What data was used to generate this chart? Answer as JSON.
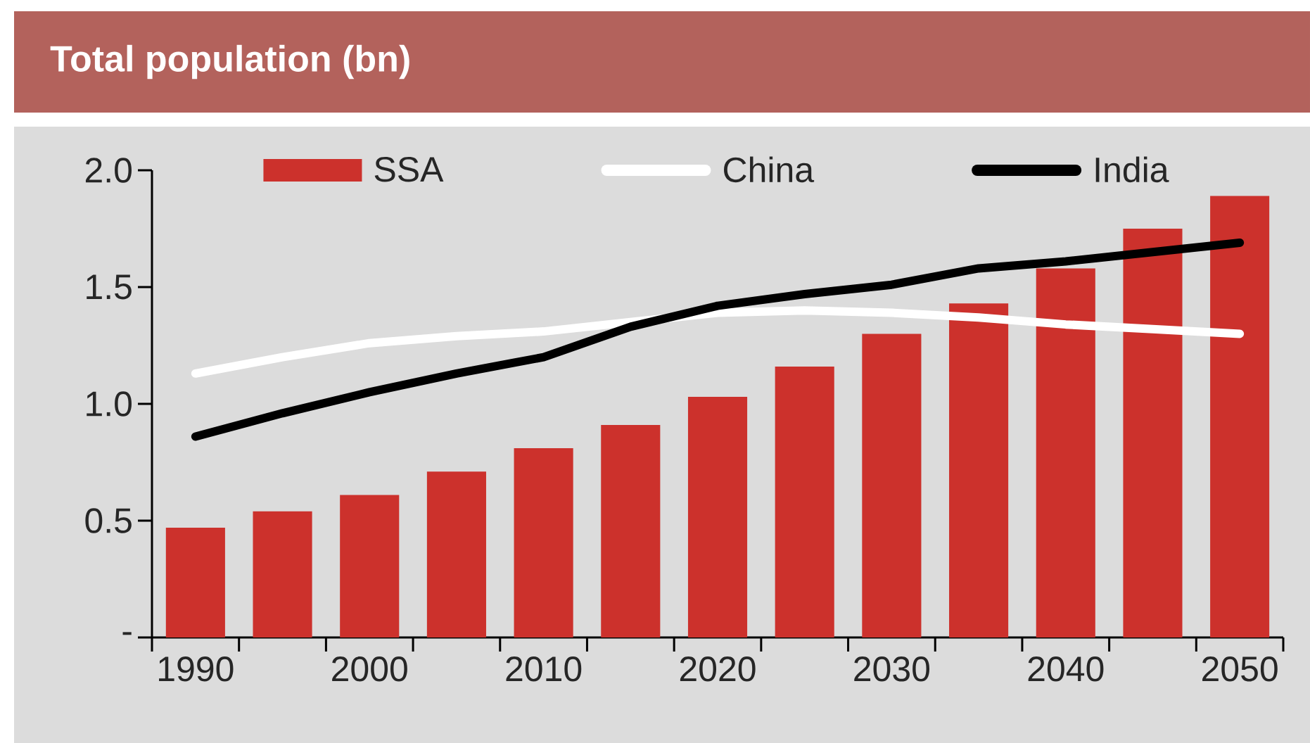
{
  "chart_data": {
    "type": "bar",
    "title": "Total population (bn)",
    "x": [
      1990,
      1995,
      2000,
      2005,
      2010,
      2015,
      2020,
      2025,
      2030,
      2035,
      2040,
      2045,
      2050
    ],
    "series": [
      {
        "name": "SSA",
        "color": "#cc312c",
        "values": [
          0.47,
          0.54,
          0.61,
          0.71,
          0.81,
          0.91,
          1.03,
          1.16,
          1.3,
          1.43,
          1.58,
          1.75,
          1.89
        ]
      },
      {
        "name": "China",
        "type": "line",
        "color": "#ffffff",
        "values": [
          1.13,
          1.2,
          1.26,
          1.29,
          1.31,
          1.35,
          1.39,
          1.4,
          1.39,
          1.37,
          1.34,
          1.32,
          1.3
        ]
      },
      {
        "name": "India",
        "type": "line",
        "color": "#000000",
        "values": [
          0.86,
          0.96,
          1.05,
          1.13,
          1.2,
          1.33,
          1.42,
          1.47,
          1.51,
          1.58,
          1.61,
          1.65,
          1.69
        ]
      }
    ],
    "xlim": [
      1987.5,
      2052.5
    ],
    "xticks": [
      1990,
      2000,
      2010,
      2020,
      2030,
      2040,
      2050
    ],
    "ylim": [
      0,
      2.0
    ],
    "yticks": [
      {
        "value": 0,
        "label": "-"
      },
      0.5,
      {
        "value": 1.0,
        "label": "1.0"
      },
      1.5,
      {
        "value": 2.0,
        "label": "2.0"
      }
    ],
    "legend": "top",
    "grid": false,
    "marker": "none",
    "line_style": "solid"
  }
}
